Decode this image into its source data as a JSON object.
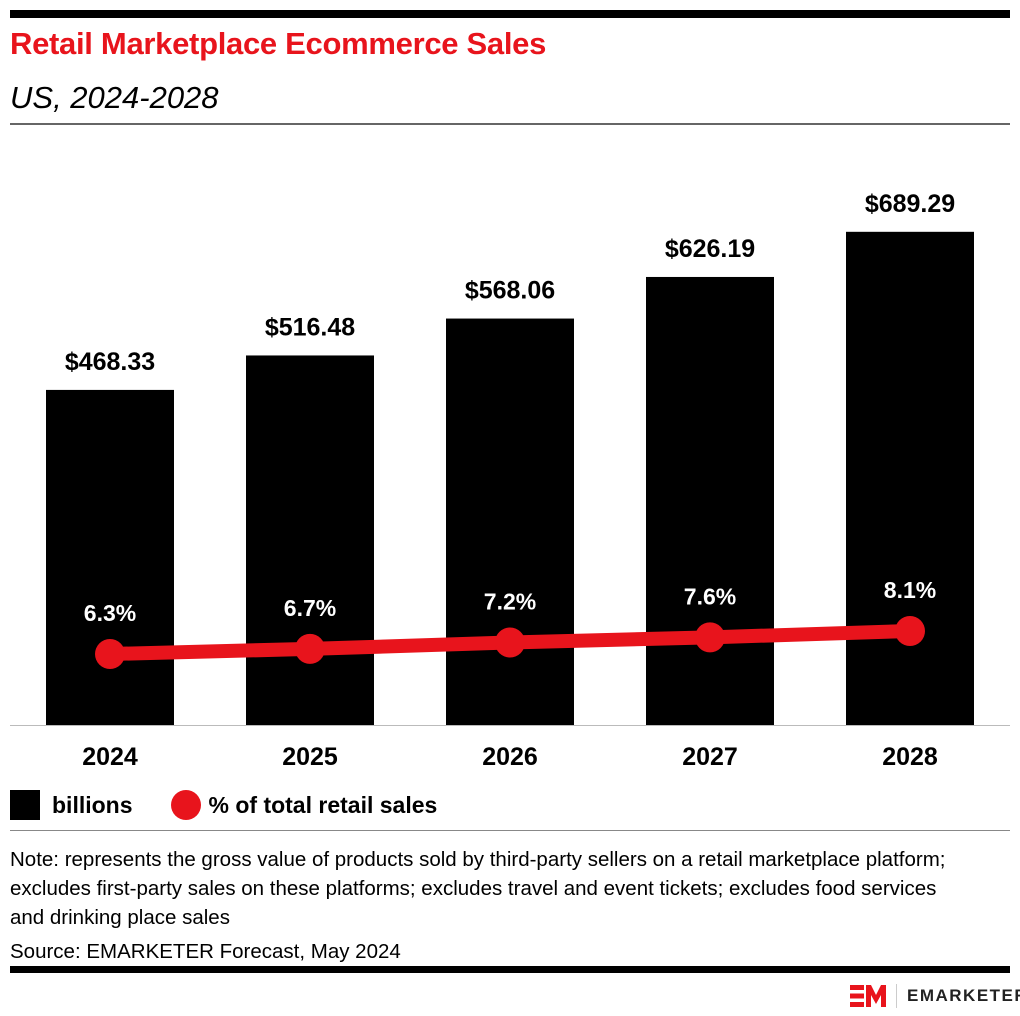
{
  "header": {
    "title": "Retail Marketplace Ecommerce Sales",
    "subtitle": "US, 2024-2028"
  },
  "chart_data": {
    "type": "bar",
    "categories": [
      "2024",
      "2025",
      "2026",
      "2027",
      "2028"
    ],
    "series": [
      {
        "name": "billions",
        "type": "bar",
        "values": [
          468.33,
          516.48,
          568.06,
          626.19,
          689.29
        ],
        "labels": [
          "$468.33",
          "$516.48",
          "$568.06",
          "$626.19",
          "$689.29"
        ],
        "color": "#000000"
      },
      {
        "name": "% of total retail sales",
        "type": "line",
        "values": [
          6.3,
          6.7,
          7.2,
          7.6,
          8.1
        ],
        "labels": [
          "6.3%",
          "6.7%",
          "7.2%",
          "7.6%",
          "8.1%"
        ],
        "color": "#e8141c"
      }
    ],
    "legend_position": "bottom-left",
    "grid": false
  },
  "legend": {
    "bars": "billions",
    "line": "% of total retail sales"
  },
  "footer": {
    "note": "Note: represents the gross value of products sold by third-party sellers on a retail marketplace platform; excludes first-party sales on these platforms; excludes travel and event tickets; excludes food services and drinking place sales",
    "source": "Source: EMARKETER Forecast, May 2024",
    "logo_text": "EMARKETER"
  }
}
